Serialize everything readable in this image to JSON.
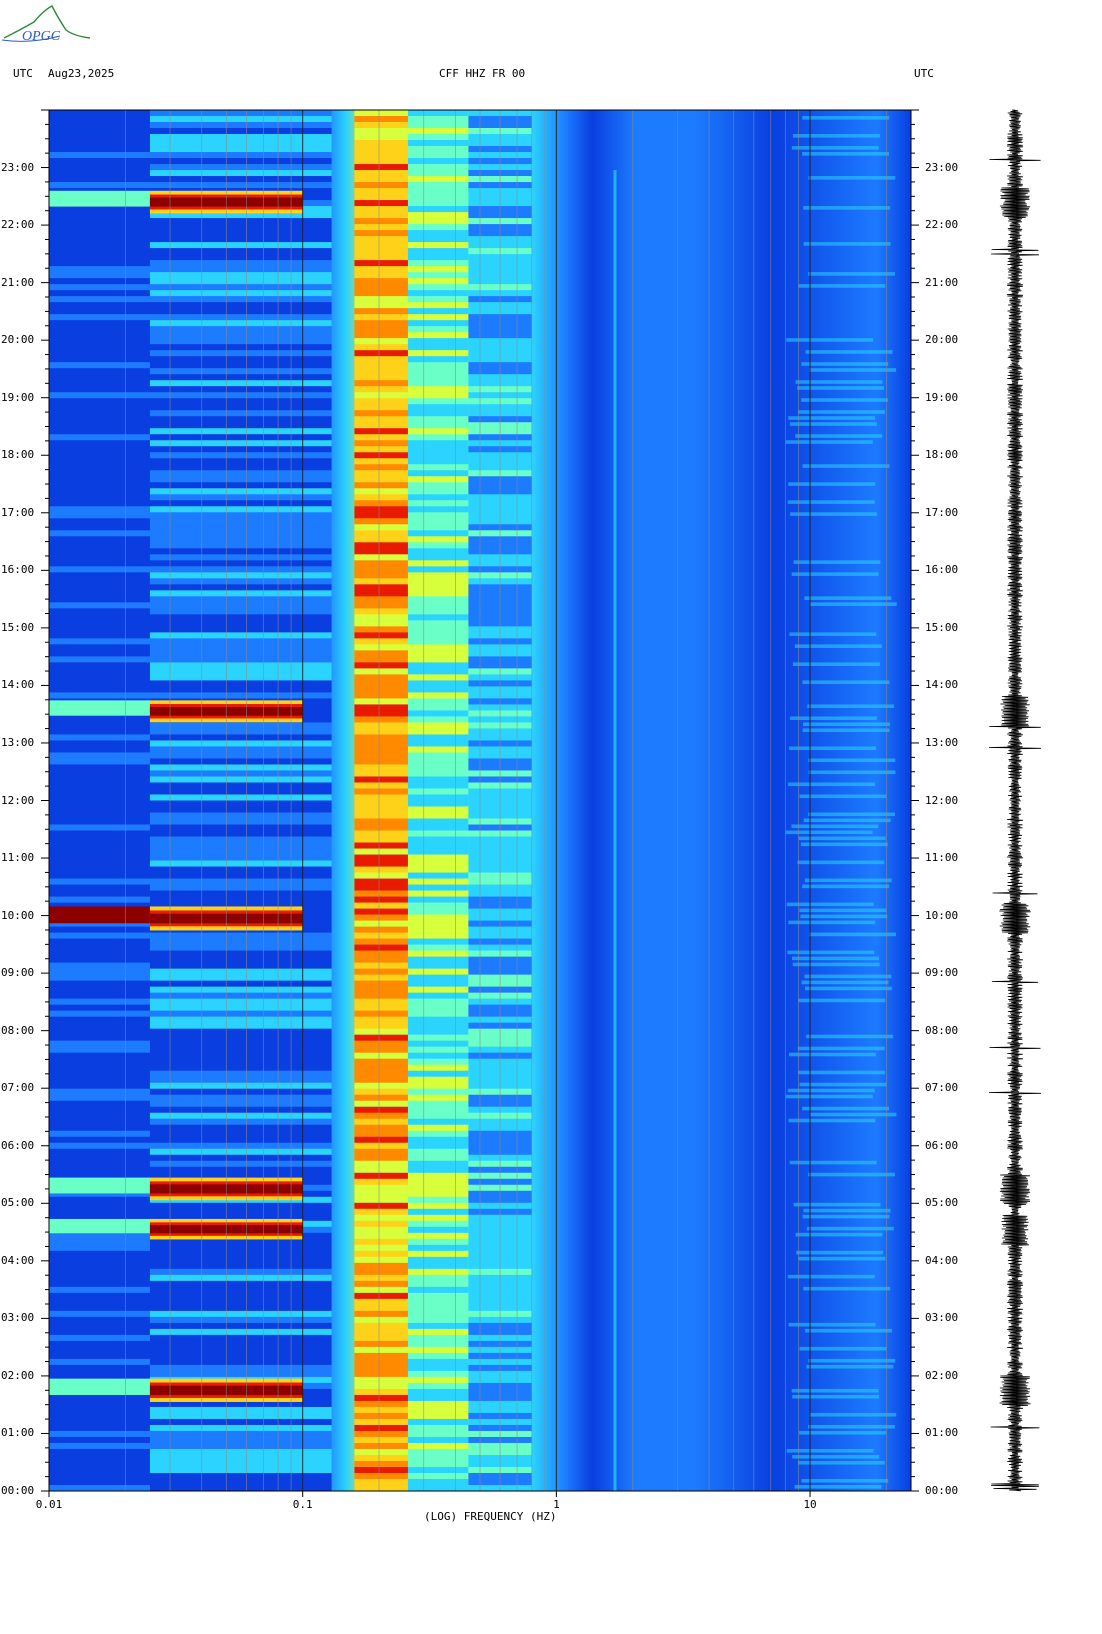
{
  "header": {
    "left_tz": "UTC",
    "date": "Aug23,2025",
    "station": "CFF HHZ FR 00",
    "right_tz": "UTC"
  },
  "logo": {
    "text": "OPGC",
    "color": "#2a8a3a"
  },
  "chart_data": {
    "type": "heatmap",
    "title": "CFF HHZ FR 00",
    "xlabel": "(LOG) FREQUENCY (HZ)",
    "ylabel": "",
    "xscale": "log",
    "xlim": [
      0.01,
      25
    ],
    "xticks": [
      {
        "value": 0.01,
        "label": "0.01"
      },
      {
        "value": 0.1,
        "label": "0.1"
      },
      {
        "value": 1,
        "label": "1"
      },
      {
        "value": 10,
        "label": "10"
      }
    ],
    "ylim_hours": [
      0,
      24
    ],
    "yticks": [
      "00:00",
      "01:00",
      "02:00",
      "03:00",
      "04:00",
      "05:00",
      "06:00",
      "07:00",
      "08:00",
      "09:00",
      "10:00",
      "11:00",
      "12:00",
      "13:00",
      "14:00",
      "15:00",
      "16:00",
      "17:00",
      "18:00",
      "19:00",
      "20:00",
      "21:00",
      "22:00",
      "23:00"
    ],
    "y_direction": "time increases upward",
    "colormap": [
      "#0000a8",
      "#0a3ee0",
      "#1d7bff",
      "#2ad4ff",
      "#6bffc8",
      "#d8ff3c",
      "#ffd21a",
      "#ff8a00",
      "#e81a00",
      "#8c0000"
    ],
    "events_utc_hours": [
      {
        "hour": 1.75,
        "level": 0.95
      },
      {
        "hour": 4.55,
        "level": 0.75
      },
      {
        "hour": 5.25,
        "level": 0.9
      },
      {
        "hour": 9.95,
        "level": 1.0
      },
      {
        "hour": 13.55,
        "level": 0.85
      },
      {
        "hour": 22.4,
        "level": 0.9
      }
    ],
    "microseism_peak_hz": 0.2,
    "trace": {
      "type": "seismogram",
      "color": "#000000"
    }
  }
}
